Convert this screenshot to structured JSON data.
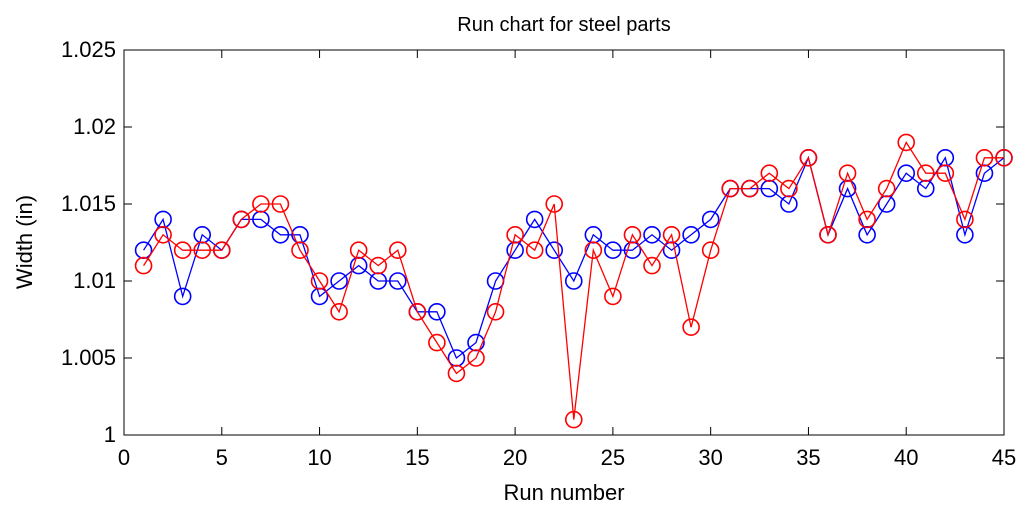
{
  "chart_data": {
    "type": "line",
    "title": "Run chart for steel parts",
    "xlabel": "Run number",
    "ylabel": "Width (in)",
    "xlim": [
      0,
      45
    ],
    "ylim": [
      1.0,
      1.025
    ],
    "xticks": [
      0,
      5,
      10,
      15,
      20,
      25,
      30,
      35,
      40,
      45
    ],
    "xtick_labels": [
      "0",
      "5",
      "10",
      "15",
      "20",
      "25",
      "30",
      "35",
      "40",
      "45"
    ],
    "yticks": [
      1.0,
      1.005,
      1.01,
      1.015,
      1.02,
      1.025
    ],
    "ytick_labels": [
      "1",
      "1.005",
      "1.01",
      "1.015",
      "1.02",
      "1.025"
    ],
    "grid": false,
    "marker": "circle",
    "x": [
      1,
      2,
      3,
      4,
      5,
      6,
      7,
      8,
      9,
      10,
      11,
      12,
      13,
      14,
      15,
      16,
      17,
      18,
      19,
      20,
      21,
      22,
      23,
      24,
      25,
      26,
      27,
      28,
      29,
      30,
      31,
      32,
      33,
      34,
      35,
      36,
      37,
      38,
      39,
      40,
      41,
      42,
      43,
      44,
      45
    ],
    "series": [
      {
        "color": "#0000ff",
        "values": [
          1.012,
          1.014,
          1.009,
          1.013,
          1.012,
          1.014,
          1.014,
          1.013,
          1.013,
          1.009,
          1.01,
          1.011,
          1.01,
          1.01,
          1.008,
          1.008,
          1.005,
          1.006,
          1.01,
          1.012,
          1.014,
          1.012,
          1.01,
          1.013,
          1.012,
          1.012,
          1.013,
          1.012,
          1.013,
          1.014,
          1.016,
          1.016,
          1.016,
          1.015,
          1.018,
          1.013,
          1.016,
          1.013,
          1.015,
          1.017,
          1.016,
          1.018,
          1.013,
          1.017,
          1.018
        ]
      },
      {
        "color": "#ff0000",
        "values": [
          1.011,
          1.013,
          1.012,
          1.012,
          1.012,
          1.014,
          1.015,
          1.015,
          1.012,
          1.01,
          1.008,
          1.012,
          1.011,
          1.012,
          1.008,
          1.006,
          1.004,
          1.005,
          1.008,
          1.013,
          1.012,
          1.015,
          1.001,
          1.012,
          1.009,
          1.013,
          1.011,
          1.013,
          1.007,
          1.012,
          1.016,
          1.016,
          1.017,
          1.016,
          1.018,
          1.013,
          1.017,
          1.014,
          1.016,
          1.019,
          1.017,
          1.017,
          1.014,
          1.018,
          1.018
        ]
      }
    ]
  }
}
